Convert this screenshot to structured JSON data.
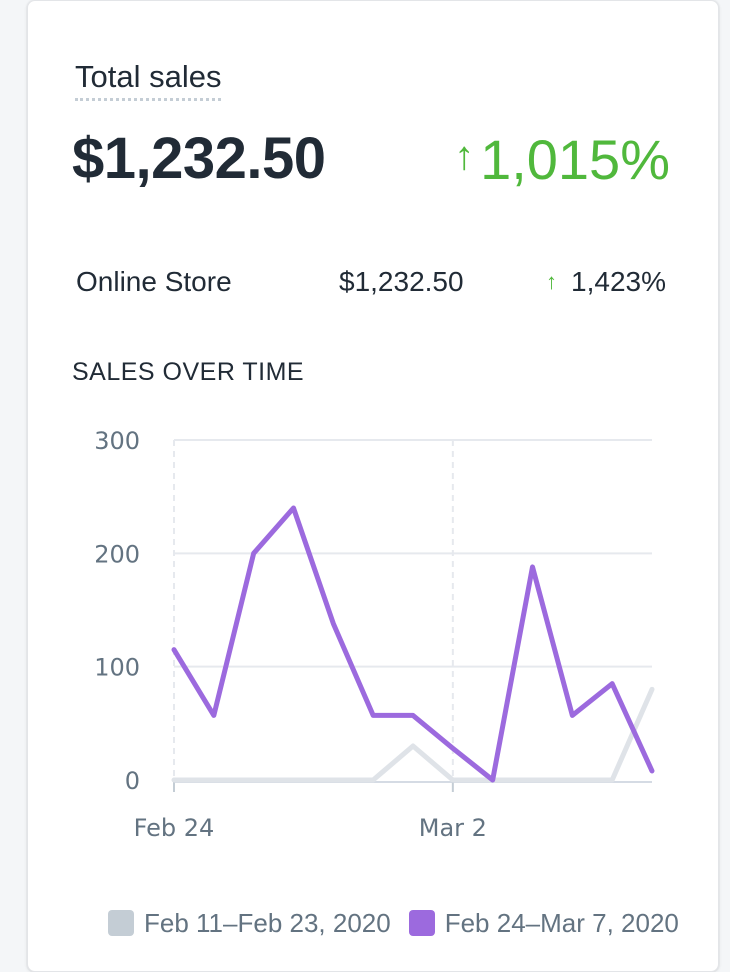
{
  "card": {
    "title": "Total sales",
    "total_value": "$1,232.50",
    "total_change": "1,015%",
    "breakdown": [
      {
        "name": "Online Store",
        "value": "$1,232.50",
        "change": "1,423%"
      }
    ],
    "section_title": "SALES OVER TIME"
  },
  "colors": {
    "positive": "#50b83c",
    "current_series": "#9c6ade",
    "previous_series": "#dfe3e8",
    "grid": "#e6e9ee",
    "axis_text": "#637381"
  },
  "chart_data": {
    "type": "line",
    "ylim": [
      0,
      300
    ],
    "yticks": [
      0,
      100,
      200,
      300
    ],
    "x_tick_labels": [
      {
        "index": 0,
        "label": "Feb 24"
      },
      {
        "index": 7,
        "label": "Mar 2"
      }
    ],
    "point_count": 13,
    "grid": true,
    "legend_position": "bottom",
    "series": [
      {
        "name": "Feb 11–Feb 23, 2020",
        "color": "#c4cdd5",
        "values": [
          0,
          0,
          0,
          0,
          0,
          0,
          30,
          0,
          0,
          0,
          0,
          0,
          80
        ]
      },
      {
        "name": "Feb 24–Mar 7, 2020",
        "color": "#9c6ade",
        "values": [
          115,
          57,
          200,
          240,
          138,
          57,
          57,
          28,
          0,
          188,
          57,
          85,
          8
        ]
      }
    ]
  }
}
